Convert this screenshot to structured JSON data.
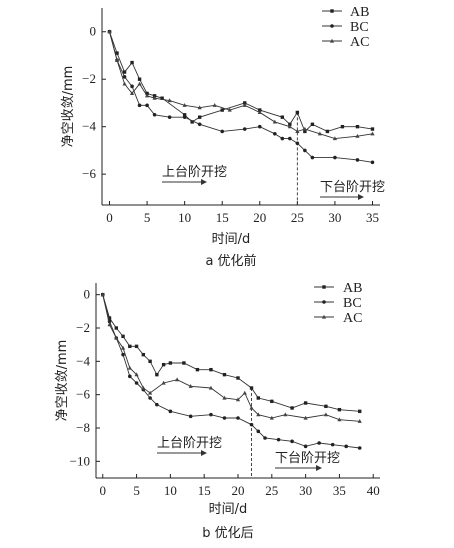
{
  "chart_data": [
    {
      "type": "line",
      "caption": "a 优化前",
      "xlabel": "时间/d",
      "ylabel": "净空收敛/mm",
      "xlim": [
        -1,
        36
      ],
      "ylim": [
        -7.3,
        1
      ],
      "xticks": [
        0,
        5,
        10,
        15,
        20,
        25,
        30,
        35
      ],
      "yticks": [
        0,
        -2,
        -4,
        -6
      ],
      "legend_position": "top-right",
      "series": [
        {
          "name": "AB",
          "marker": "square",
          "x": [
            0,
            1,
            2,
            3,
            4,
            5,
            6,
            7,
            10,
            11,
            12,
            15,
            18,
            20,
            23,
            24,
            25,
            26,
            27,
            29,
            31,
            33,
            35
          ],
          "y": [
            0,
            -0.9,
            -1.7,
            -1.3,
            -2.0,
            -2.6,
            -2.7,
            -2.8,
            -3.5,
            -3.8,
            -3.6,
            -3.3,
            -3.0,
            -3.3,
            -3.6,
            -3.9,
            -3.4,
            -4.2,
            -3.9,
            -4.2,
            -4.0,
            -4.0,
            -4.1
          ]
        },
        {
          "name": "BC",
          "marker": "circle",
          "x": [
            0,
            1,
            2,
            3,
            4,
            5,
            6,
            8,
            10,
            12,
            15,
            18,
            20,
            22,
            23,
            24,
            25,
            26,
            27,
            30,
            33,
            35
          ],
          "y": [
            0,
            -1.2,
            -1.9,
            -2.3,
            -3.1,
            -3.1,
            -3.5,
            -3.6,
            -3.6,
            -3.9,
            -4.2,
            -4.1,
            -4.0,
            -4.3,
            -4.5,
            -4.5,
            -4.7,
            -5.0,
            -5.3,
            -5.3,
            -5.4,
            -5.5
          ]
        },
        {
          "name": "AC",
          "marker": "triangle",
          "x": [
            0,
            1,
            2,
            3,
            4,
            5,
            6,
            8,
            10,
            12,
            14,
            16,
            18,
            20,
            22,
            24,
            25,
            26,
            28,
            30,
            33,
            35
          ],
          "y": [
            0,
            -1.2,
            -2.2,
            -2.6,
            -2.2,
            -2.7,
            -2.8,
            -2.9,
            -3.1,
            -3.2,
            -3.1,
            -3.3,
            -3.1,
            -3.4,
            -3.8,
            -4.0,
            -4.2,
            -4.1,
            -4.3,
            -4.5,
            -4.4,
            -4.3
          ]
        }
      ],
      "annotations": [
        {
          "text": "上台阶开挖"
        },
        {
          "text": "下台阶开挖"
        }
      ],
      "marker_line_x": 25
    },
    {
      "type": "line",
      "caption": "b 优化后",
      "xlabel": "时间/d",
      "ylabel": "净空收敛/mm",
      "xlim": [
        -1,
        41
      ],
      "ylim": [
        -11,
        0.7
      ],
      "xticks": [
        0,
        5,
        10,
        15,
        20,
        25,
        30,
        35,
        40
      ],
      "yticks": [
        0,
        -2,
        -4,
        -6,
        -8,
        -10
      ],
      "legend_position": "top-right",
      "series": [
        {
          "name": "AB",
          "marker": "square",
          "x": [
            0,
            1,
            2,
            3,
            4,
            5,
            6,
            7,
            8,
            9,
            10,
            12,
            14,
            16,
            18,
            20,
            22,
            23,
            25,
            28,
            30,
            33,
            35,
            38
          ],
          "y": [
            0,
            -1.4,
            -2.0,
            -2.5,
            -3.1,
            -3.1,
            -3.6,
            -4.0,
            -4.8,
            -4.2,
            -4.1,
            -4.1,
            -4.5,
            -4.5,
            -4.8,
            -5.0,
            -5.6,
            -6.2,
            -6.4,
            -6.8,
            -6.5,
            -6.7,
            -6.9,
            -7.0
          ]
        },
        {
          "name": "BC",
          "marker": "circle",
          "x": [
            0,
            1,
            2,
            3,
            4,
            5,
            6,
            7,
            8,
            10,
            13,
            16,
            18,
            20,
            22,
            23,
            24,
            26,
            28,
            30,
            32,
            34,
            36,
            38
          ],
          "y": [
            0,
            -1.6,
            -2.6,
            -3.6,
            -4.9,
            -5.3,
            -5.7,
            -6.2,
            -6.6,
            -7.0,
            -7.3,
            -7.2,
            -7.4,
            -7.4,
            -7.8,
            -8.2,
            -8.6,
            -8.7,
            -8.8,
            -9.1,
            -8.9,
            -9.0,
            -9.1,
            -9.2
          ]
        },
        {
          "name": "AC",
          "marker": "triangle",
          "x": [
            0,
            1,
            2,
            3,
            4,
            5,
            6,
            7,
            9,
            11,
            13,
            16,
            18,
            20,
            21,
            22,
            23,
            25,
            27,
            30,
            33,
            35,
            38
          ],
          "y": [
            0,
            -1.8,
            -2.6,
            -3.2,
            -4.4,
            -4.8,
            -5.6,
            -5.9,
            -5.3,
            -5.1,
            -5.5,
            -5.6,
            -6.2,
            -6.3,
            -5.9,
            -6.8,
            -7.2,
            -7.4,
            -7.2,
            -7.4,
            -7.2,
            -7.5,
            -7.6
          ]
        }
      ],
      "annotations": [
        {
          "text": "上台阶开挖"
        },
        {
          "text": "下台阶开挖"
        }
      ],
      "marker_line_x": 22
    }
  ]
}
